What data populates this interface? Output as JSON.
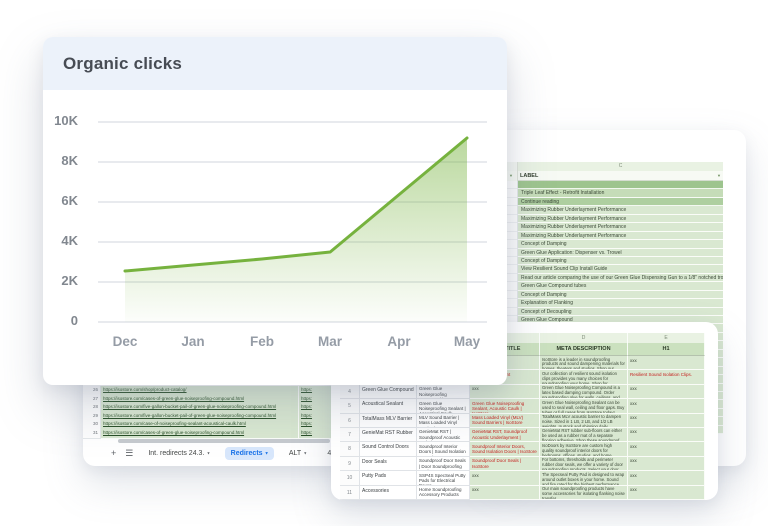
{
  "chart_card": {
    "title": "Organic clicks",
    "chart_data": {
      "type": "area",
      "title": "Organic clicks",
      "x": [
        "Dec",
        "Jan",
        "Feb",
        "Mar",
        "Apr",
        "May"
      ],
      "values": [
        2550,
        2850,
        3150,
        3500,
        6350,
        9200
      ],
      "yticks": [
        "10K",
        "8K",
        "6K",
        "4K",
        "2K",
        "0"
      ],
      "ylim": [
        0,
        10000
      ],
      "xlabel": "",
      "ylabel": "",
      "grid": "on",
      "legend": "none",
      "line_color": "#76b23e",
      "fill": "green gradient fading to transparent"
    }
  },
  "redirects_sheet": {
    "rows": [
      {
        "num": "26",
        "url": "https://isostore.com/shop/product-catalog/",
        "col2": "https:"
      },
      {
        "num": "27",
        "url": "https://isostore.com/cases-of-green-glue-noiseproofing-compound.html",
        "col2": "https:"
      },
      {
        "num": "28",
        "url": "https://isostore.com/five-gallon-bucket-pail-of-green-glue-noiseproofing-compound.html",
        "col2": "https:"
      },
      {
        "num": "29",
        "url": "https://isostore.com/five-gallon-bucket-pail-of-green-glue-noiseproofing-compound.html",
        "col2": "https:"
      },
      {
        "num": "30",
        "url": "https://isostore.com/case-of-noiseproofing-sealant-acoustical-caulk.html",
        "col2": "https:"
      },
      {
        "num": "31",
        "url": "https://isostore.com/cases-of-green-glue-noiseproofing-compound.html",
        "col2": "https:"
      }
    ],
    "add_sheet_icon": "+",
    "all_sheets_icon": "☰",
    "tabs": [
      {
        "label": "Int. redirects 24.3.",
        "caret": "▾",
        "active": false
      },
      {
        "label": "Redirects",
        "caret": "▾",
        "active": true
      },
      {
        "label": "ALT",
        "caret": "▾",
        "active": false
      },
      {
        "label": "404",
        "caret": "▾",
        "active": false
      }
    ]
  },
  "label_sheet": {
    "column_letter": "C",
    "header": "LABEL",
    "funnel_icon": "▼",
    "rows": [
      {
        "text": "",
        "shade": "dark"
      },
      {
        "text": "Triple Leaf Effect - Retrofit Installation",
        "shade": "mid"
      },
      {
        "text": "Continue reading",
        "shade": "mid2"
      },
      {
        "text": "Maximizing Rubber Underlayment Performance",
        "shade": "light"
      },
      {
        "text": "Maximizing Rubber Underlayment Performance",
        "shade": "light"
      },
      {
        "text": "Maximizing Rubber Underlayment Performance",
        "shade": "light"
      },
      {
        "text": "Maximizing Rubber Underlayment Performance",
        "shade": "light"
      },
      {
        "text": "Concept of Damping",
        "shade": "light"
      },
      {
        "text": "Green Glue Application: Dispenser vs. Trowel",
        "shade": "light"
      },
      {
        "text": "Concept of Damping",
        "shade": "light"
      },
      {
        "text": "View Resilient Sound Clip Install Guide",
        "shade": "light"
      },
      {
        "text": "Read our article comparing the use of our Green Glue Dispensing Gun to a 1/8\" notched trowel.",
        "shade": "light"
      },
      {
        "text": "Green Glue Compound tubes",
        "shade": "light"
      },
      {
        "text": "Concept of Damping",
        "shade": "light"
      },
      {
        "text": "Explanation of Flanking",
        "shade": "light"
      },
      {
        "text": "Concept of Decoupling",
        "shade": "light"
      },
      {
        "text": "Green Glue Compound",
        "shade": "light"
      },
      {
        "text": "",
        "shade": "light"
      },
      {
        "text": "",
        "shade": "light"
      },
      {
        "text": "",
        "shade": "light"
      },
      {
        "text": "",
        "shade": "light"
      },
      {
        "text": "",
        "shade": "light"
      },
      {
        "text": "",
        "shade": "light"
      },
      {
        "text": "",
        "shade": "light"
      },
      {
        "text": "",
        "shade": "light"
      },
      {
        "text": "",
        "shade": "light"
      },
      {
        "text": "",
        "shade": "light"
      },
      {
        "text": "",
        "shade": "light"
      },
      {
        "text": "",
        "shade": "light"
      },
      {
        "text": "",
        "shade": "light"
      }
    ]
  },
  "meta_sheet": {
    "letter_cells": [
      "",
      "",
      "",
      "C",
      "D",
      "E"
    ],
    "header_cells": [
      "",
      "",
      "",
      "META TITLE",
      "META DESCRIPTION",
      "H1"
    ],
    "rows": [
      {
        "num": "2",
        "label": "",
        "title": "",
        "meta_title": "",
        "meta_description": "IsoStore is a leader in soundproofing products and sound dampening materials for homes, theaters and studios. Shop our collection of products today!",
        "h1": "xxx",
        "meta_title_red": false,
        "h1_red": false
      },
      {
        "num": "3",
        "label": "",
        "title": "",
        "meta_title": "tion Clips, Resilient",
        "meta_description": "Our collection of resilient sound isolation clips provides you many choices for soundproofing your home. Shop for soundproof drywall clips today!",
        "h1": "Resilient Sound Isolation Clips.",
        "meta_title_red": true,
        "h1_red": true
      },
      {
        "num": "4",
        "label": "Green Glue Compound",
        "title": "Green Glue Noiseproofing Compound | Soundproofing Glue",
        "meta_title": "xxx",
        "meta_description": "Green Glue Noiseproofing Compound is a latex based damping compound. Order soundproofing glue for walls, ceilings, and floors today from IsoStore!",
        "h1": "xxx",
        "meta_title_red": false,
        "h1_red": false
      },
      {
        "num": "5",
        "label": "Acoustical Sealant",
        "title": "Green Glue Noiseproofing Sealant | Acoustical Caulk",
        "meta_title": "Green Glue Noiseproofing Sealant, Acoustic Caulk | IsoStore",
        "meta_description": "Green Glue Noiseproofing Sealant can be used to seal wall, ceiling and floor gaps. Buy tubes or full cases from IsoStore today!",
        "h1": "xxx",
        "meta_title_red": true,
        "h1_red": false
      },
      {
        "num": "6",
        "label": "TotalMass MLV Barrier",
        "title": "MLV Sound Barrier | Mass Loaded Vinyl Barrier | IsoStore",
        "meta_title": "Mass Loaded Vinyl (MLV) Sound Barriers | IsoStore",
        "meta_description": "TotalMass MLV acoustic barrier to dampen noise. Sized in 1 LB, 2 LB, and 1/2 LB weights. In stock and shipping daily.",
        "h1": "xxx",
        "meta_title_red": true,
        "h1_red": false
      },
      {
        "num": "7",
        "label": "GenieMat RST Rubber",
        "title": "GenieMat RST | Soundproof Acoustic Underlayment",
        "meta_title": "GenieMat RST, Soundproof Acoustic Underlayment | IsoStore",
        "meta_description": "GenieMat RST rubber sub-floors can either be used as a rubber mat of a separate flooring adhesive. Shop these soundproof underlays online at IsoStore!",
        "h1": "xxx",
        "meta_title_red": true,
        "h1_red": false
      },
      {
        "num": "8",
        "label": "Sound Control Doors",
        "title": "Soundproof Interior Doors | Sound Isolation Doors | IsoStore",
        "meta_title": "Soundproof Interior Doors, Sound Isolation Doors | IsoStore",
        "meta_description": "IsoDoors by IsoStore are custom high quality soundproof interior doors for bedrooms, offices, studios, and home theaters.",
        "h1": "xxx",
        "meta_title_red": true,
        "h1_red": false
      },
      {
        "num": "9",
        "label": "Door Seals",
        "title": "Soundproof Door Seals | Door Soundproofing Products",
        "meta_title": "Soundproof Door Seals | IsoStore",
        "meta_description": "For bottoms, thresholds and perimeter rubber door seals, we offer a variety of door soundproofing products. Select your door soundproofing seal today!",
        "h1": "xxx",
        "meta_title_red": true,
        "h1_red": false
      },
      {
        "num": "10",
        "label": "Putty Pads",
        "title": "SSP4S SpecSeal Putty Pads for Electrical Boxes",
        "meta_title": "xxx",
        "meta_description": "The Specseal Putty Pad is designed to wrap around outlet boxes in your home. Sound and fire rated for the highest performance.",
        "h1": "xxx",
        "meta_title_red": false,
        "h1_red": false
      },
      {
        "num": "11",
        "label": "Accessories",
        "title": "Home Soundproofing Accessory Products",
        "meta_title": "xxx",
        "meta_description": "Our main soundproofing products have some accessories for isolating flanking noise transfer.",
        "h1": "xxx",
        "meta_title_red": false,
        "h1_red": false
      }
    ]
  },
  "colors": {
    "chart_header_bg": "#ecf2fa",
    "chart_line": "#76b23e",
    "sheet_green_light": "#d9e8d1",
    "sheet_green_dark": "#9dc48e",
    "sheet_header_green": "#cbe1bf",
    "red_text": "#c5221f",
    "active_tab_blue": "#1a73e8",
    "link_green": "#274e26"
  }
}
